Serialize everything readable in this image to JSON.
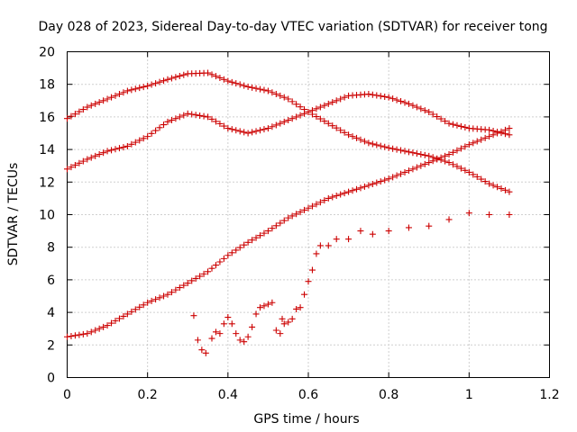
{
  "chart_data": {
    "type": "scatter",
    "title": "Day 028 of 2023, Sidereal Day-to-day VTEC variation (SDTVAR) for receiver tong",
    "xlabel": "GPS time / hours",
    "ylabel": "SDTVAR / TECUs",
    "xlim": [
      0,
      1.2
    ],
    "ylim": [
      0,
      20
    ],
    "xticks": [
      0,
      0.2,
      0.4,
      0.6,
      0.8,
      1,
      1.2
    ],
    "xtick_labels": [
      "0",
      "0.2",
      "0.4",
      "0.6",
      "0.8",
      "1",
      "1.2"
    ],
    "yticks": [
      0,
      2,
      4,
      6,
      8,
      10,
      12,
      14,
      16,
      18,
      20
    ],
    "ytick_labels": [
      "0",
      "2",
      "4",
      "6",
      "8",
      "10",
      "12",
      "14",
      "16",
      "18",
      "20"
    ],
    "grid": true,
    "marker": "+",
    "color": "#cc0000",
    "series": [
      {
        "name": "series-1",
        "x": [
          0,
          0.05,
          0.1,
          0.15,
          0.2,
          0.25,
          0.3,
          0.35,
          0.4,
          0.45,
          0.5,
          0.55,
          0.6,
          0.65,
          0.7,
          0.75,
          0.8,
          0.85,
          0.9,
          0.95,
          1.0,
          1.05,
          1.1
        ],
        "y": [
          15.9,
          16.6,
          17.1,
          17.6,
          17.9,
          18.3,
          18.65,
          18.7,
          18.2,
          17.85,
          17.6,
          17.1,
          16.3,
          15.6,
          14.9,
          14.4,
          14.1,
          13.85,
          13.6,
          13.2,
          12.6,
          11.9,
          11.4
        ]
      },
      {
        "name": "series-2",
        "x": [
          0,
          0.05,
          0.1,
          0.15,
          0.2,
          0.25,
          0.3,
          0.35,
          0.4,
          0.45,
          0.5,
          0.55,
          0.6,
          0.65,
          0.7,
          0.75,
          0.8,
          0.85,
          0.9,
          0.95,
          1.0,
          1.05,
          1.1
        ],
        "y": [
          12.8,
          13.4,
          13.9,
          14.2,
          14.8,
          15.7,
          16.2,
          16.0,
          15.3,
          15.0,
          15.3,
          15.8,
          16.3,
          16.8,
          17.3,
          17.4,
          17.2,
          16.8,
          16.3,
          15.6,
          15.3,
          15.2,
          14.9
        ]
      },
      {
        "name": "series-3",
        "x": [
          0,
          0.05,
          0.1,
          0.15,
          0.2,
          0.25,
          0.3,
          0.35,
          0.4,
          0.45,
          0.5,
          0.55,
          0.6,
          0.65,
          0.7,
          0.75,
          0.8,
          0.85,
          0.9,
          0.95,
          1.0,
          1.05,
          1.1
        ],
        "y": [
          2.5,
          2.7,
          3.2,
          3.9,
          4.6,
          5.1,
          5.8,
          6.5,
          7.5,
          8.3,
          9.0,
          9.8,
          10.4,
          11.0,
          11.4,
          11.8,
          12.2,
          12.7,
          13.2,
          13.7,
          14.3,
          14.8,
          15.3
        ]
      },
      {
        "name": "series-4",
        "x": [
          0.315,
          0.325,
          0.335,
          0.345,
          0.36,
          0.37,
          0.38,
          0.39,
          0.4,
          0.41,
          0.42,
          0.43,
          0.44,
          0.45,
          0.46,
          0.47,
          0.48,
          0.49,
          0.5,
          0.51,
          0.52,
          0.53,
          0.535,
          0.54,
          0.55,
          0.56,
          0.57,
          0.58,
          0.59,
          0.6,
          0.61,
          0.62,
          0.63,
          0.65,
          0.67,
          0.7,
          0.73,
          0.76,
          0.8,
          0.85,
          0.9,
          0.95,
          1.0,
          1.05,
          1.1
        ],
        "y": [
          3.8,
          2.3,
          1.7,
          1.5,
          2.4,
          2.8,
          2.7,
          3.3,
          3.7,
          3.3,
          2.7,
          2.3,
          2.2,
          2.5,
          3.1,
          3.9,
          4.3,
          4.4,
          4.5,
          4.6,
          2.9,
          2.7,
          3.6,
          3.3,
          3.4,
          3.6,
          4.2,
          4.3,
          5.1,
          5.9,
          6.6,
          7.6,
          8.1,
          8.1,
          8.5,
          8.5,
          9.0,
          8.8,
          9.0,
          9.2,
          9.3,
          9.7,
          10.1,
          10.0,
          10.0
        ]
      }
    ]
  }
}
